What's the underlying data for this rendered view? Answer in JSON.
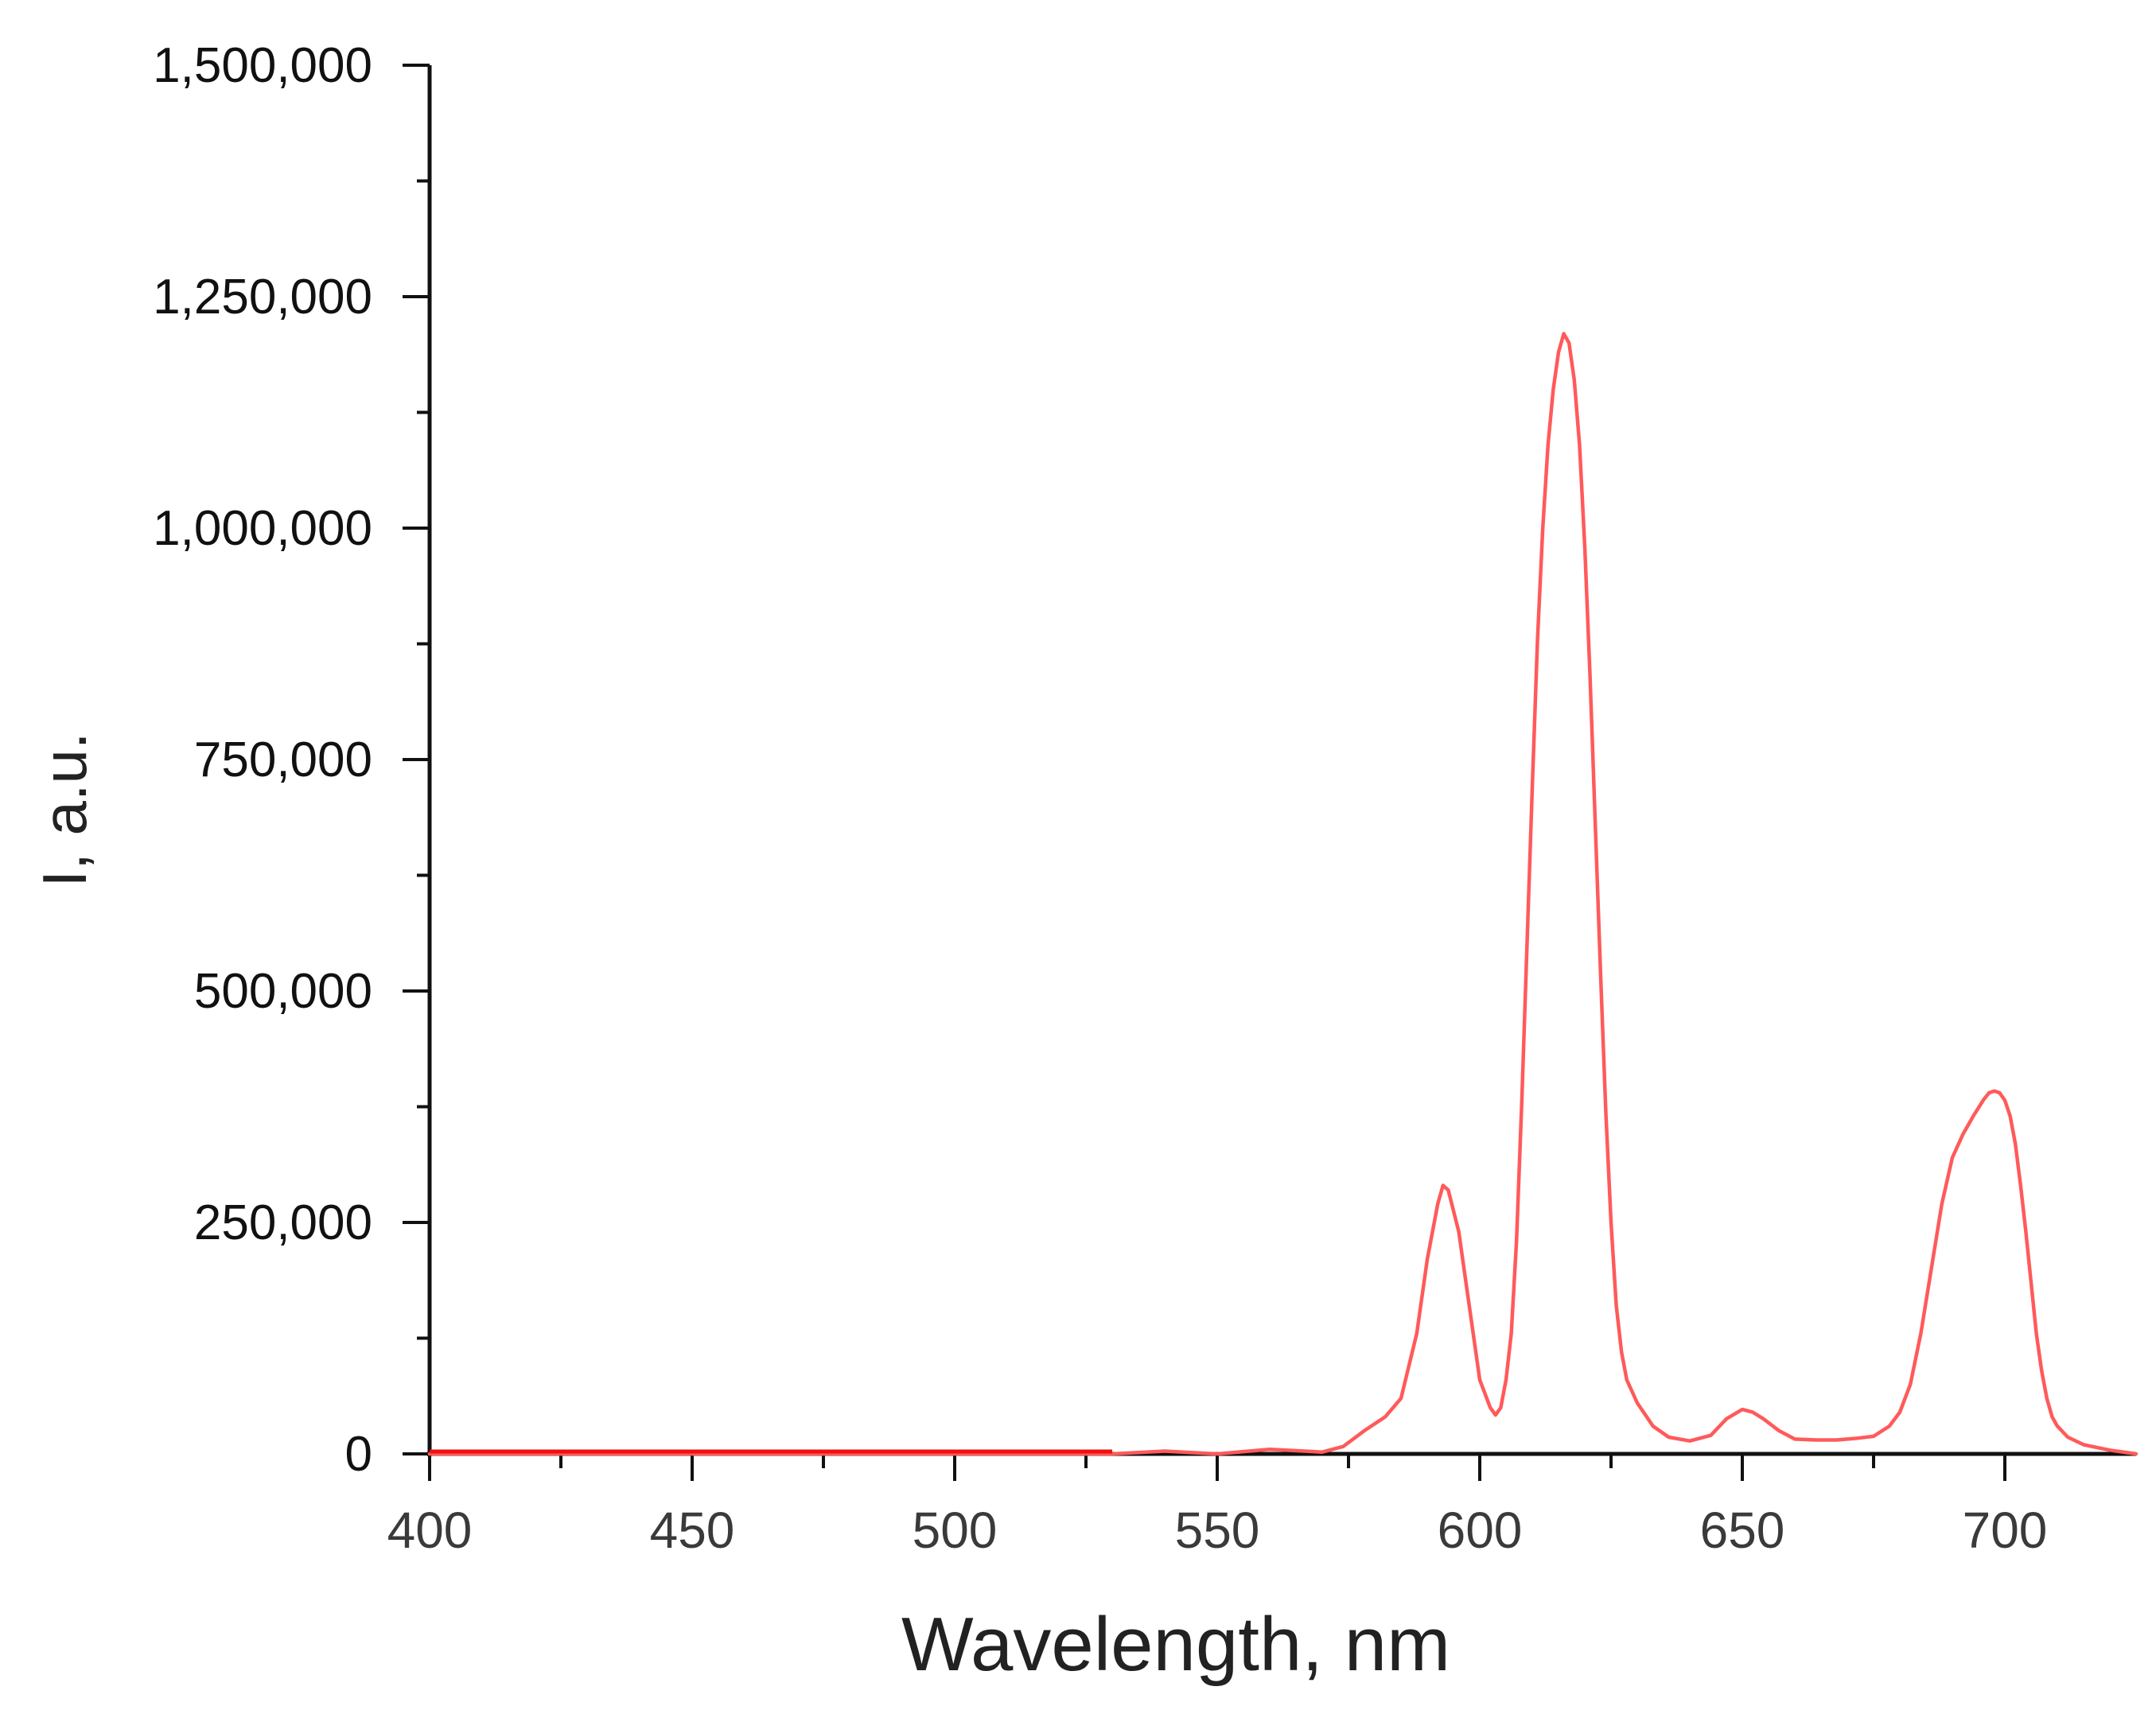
{
  "chart_data": {
    "type": "line",
    "title": "",
    "xlabel": "Wavelength, nm",
    "ylabel": "I, a.u.",
    "xlim": [
      400,
      725
    ],
    "ylim": [
      0,
      1500000
    ],
    "x_ticks": [
      400,
      450,
      500,
      550,
      600,
      650,
      700
    ],
    "x_tick_labels": [
      "400",
      "450",
      "500",
      "550",
      "600",
      "650",
      "700"
    ],
    "y_ticks": [
      0,
      250000,
      500000,
      750000,
      1000000,
      1250000,
      1500000
    ],
    "y_tick_labels": [
      "0",
      "250,000",
      "500,000",
      "750,000",
      "1,000,000",
      "1,250,000",
      "1,500,000"
    ],
    "grid": false,
    "series": [
      {
        "color": "#ff5a5a",
        "x": [
          400,
          450,
          500,
          530,
          540,
          550,
          560,
          570,
          574,
          578,
          582,
          585,
          588,
          590,
          592,
          593,
          594,
          596,
          598,
          600,
          602,
          603,
          604,
          605,
          606,
          607,
          608,
          609,
          610,
          611,
          612,
          613,
          614,
          615,
          616,
          617,
          618,
          619,
          620,
          621,
          622,
          623,
          624,
          625,
          626,
          627,
          628,
          630,
          633,
          636,
          640,
          644,
          647,
          650,
          652,
          654,
          657,
          660,
          664,
          668,
          672,
          675,
          678,
          680,
          682,
          684,
          686,
          688,
          690,
          692,
          694,
          696,
          697,
          698,
          699,
          700,
          701,
          702,
          703,
          704,
          705,
          706,
          707,
          708,
          709,
          710,
          712,
          715,
          720,
          725
        ],
        "y": [
          0,
          0,
          0,
          0,
          3000,
          0,
          5000,
          2000,
          8000,
          25000,
          40000,
          60000,
          130000,
          210000,
          270000,
          290000,
          285000,
          240000,
          160000,
          80000,
          50000,
          42000,
          50000,
          80000,
          130000,
          230000,
          380000,
          550000,
          720000,
          880000,
          1000000,
          1090000,
          1150000,
          1190000,
          1210000,
          1200000,
          1160000,
          1090000,
          980000,
          840000,
          680000,
          520000,
          370000,
          250000,
          160000,
          110000,
          80000,
          55000,
          30000,
          18000,
          14000,
          20000,
          38000,
          48000,
          45000,
          38000,
          25000,
          16000,
          15000,
          15000,
          17000,
          19000,
          30000,
          45000,
          75000,
          130000,
          200000,
          270000,
          320000,
          345000,
          365000,
          383000,
          390000,
          392000,
          390000,
          382000,
          365000,
          335000,
          290000,
          240000,
          185000,
          130000,
          90000,
          60000,
          40000,
          30000,
          18000,
          10000,
          4000,
          0
        ]
      }
    ]
  }
}
